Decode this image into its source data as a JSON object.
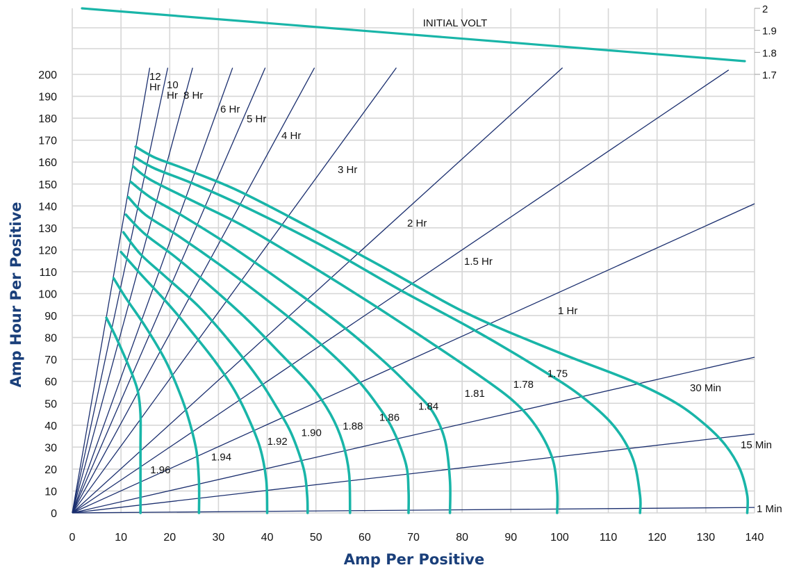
{
  "chart_data": {
    "type": "line",
    "title": "",
    "xlabel": "Amp Per Positive",
    "ylabel": "Amp Hour Per Positive",
    "xlim": [
      0,
      140
    ],
    "ylim": [
      0,
      200
    ],
    "x_ticks": [
      "0",
      "10",
      "20",
      "30",
      "40",
      "50",
      "60",
      "70",
      "80",
      "90",
      "100",
      "110",
      "120",
      "130",
      "140"
    ],
    "y_ticks": [
      "0",
      "10",
      "20",
      "30",
      "40",
      "50",
      "60",
      "70",
      "80",
      "90",
      "100",
      "110",
      "120",
      "130",
      "140",
      "150",
      "160",
      "170",
      "180",
      "190",
      "200"
    ],
    "secondary_axis": {
      "label": "INITIAL VOLT",
      "ticks": [
        "2",
        "1.9",
        "1.8",
        "1.7"
      ],
      "range": [
        1.7,
        2.0
      ],
      "series": {
        "values": [
          [
            2,
            2.0
          ],
          [
            138,
            1.76
          ]
        ]
      }
    },
    "rate_lines": [
      {
        "label": "12 Hr",
        "end": [
          15.9,
          203
        ]
      },
      {
        "label": "10 Hr",
        "end": [
          19.6,
          203
        ]
      },
      {
        "label": "8 Hr",
        "end": [
          24.7,
          203
        ]
      },
      {
        "label": "6 Hr",
        "end": [
          32.9,
          203
        ]
      },
      {
        "label": "5 Hr",
        "end": [
          39.6,
          203
        ]
      },
      {
        "label": "4 Hr",
        "end": [
          49.7,
          203
        ]
      },
      {
        "label": "3 Hr",
        "end": [
          66.5,
          203
        ]
      },
      {
        "label": "2 Hr",
        "end": [
          100.6,
          203
        ]
      },
      {
        "label": "1.5 Hr",
        "end": [
          134.7,
          202
        ]
      },
      {
        "label": "1 Hr",
        "end": [
          140,
          141
        ]
      },
      {
        "label": "30 Min",
        "end": [
          140,
          71
        ]
      },
      {
        "label": "15 Min",
        "end": [
          140,
          36
        ]
      },
      {
        "label": "1 Min",
        "end": [
          140,
          2.5
        ]
      }
    ],
    "series": [
      {
        "name": "1.96",
        "values": [
          [
            7,
            89
          ],
          [
            9,
            80
          ],
          [
            11,
            70
          ],
          [
            12.5,
            62
          ],
          [
            13.5,
            55
          ],
          [
            14,
            45
          ],
          [
            14,
            30
          ],
          [
            14,
            15
          ],
          [
            14,
            0
          ]
        ]
      },
      {
        "name": "1.94",
        "values": [
          [
            8.5,
            107
          ],
          [
            11,
            98
          ],
          [
            15,
            85
          ],
          [
            19,
            70
          ],
          [
            22,
            55
          ],
          [
            24,
            42
          ],
          [
            25.5,
            28
          ],
          [
            26,
            14
          ],
          [
            26,
            0
          ]
        ]
      },
      {
        "name": "1.92",
        "values": [
          [
            10,
            119
          ],
          [
            14,
            109
          ],
          [
            19,
            97
          ],
          [
            24,
            84
          ],
          [
            29,
            70
          ],
          [
            33,
            57
          ],
          [
            36,
            44
          ],
          [
            38.5,
            30
          ],
          [
            39.8,
            15
          ],
          [
            40,
            0
          ]
        ]
      },
      {
        "name": "1.90",
        "values": [
          [
            10.5,
            128
          ],
          [
            14,
            118
          ],
          [
            19,
            108
          ],
          [
            26,
            94
          ],
          [
            32,
            79
          ],
          [
            38,
            62
          ],
          [
            42,
            48
          ],
          [
            45,
            36
          ],
          [
            47.5,
            20
          ],
          [
            48.2,
            8
          ],
          [
            48.3,
            0
          ]
        ]
      },
      {
        "name": "1.88",
        "values": [
          [
            11,
            136
          ],
          [
            15,
            127
          ],
          [
            21,
            117
          ],
          [
            28,
            104
          ],
          [
            36,
            88
          ],
          [
            43,
            72
          ],
          [
            49,
            58
          ],
          [
            53,
            45
          ],
          [
            55.5,
            32
          ],
          [
            56.8,
            18
          ],
          [
            57,
            0
          ]
        ]
      },
      {
        "name": "1.86",
        "values": [
          [
            11.5,
            144
          ],
          [
            15,
            136
          ],
          [
            22,
            126
          ],
          [
            31,
            112
          ],
          [
            40,
            97
          ],
          [
            50,
            79
          ],
          [
            58,
            62
          ],
          [
            63,
            48
          ],
          [
            66,
            37
          ],
          [
            68.5,
            22
          ],
          [
            69,
            10
          ],
          [
            69,
            0
          ]
        ]
      },
      {
        "name": "1.84",
        "values": [
          [
            12,
            151
          ],
          [
            16,
            144
          ],
          [
            23,
            135
          ],
          [
            33,
            121
          ],
          [
            44,
            104
          ],
          [
            55,
            86
          ],
          [
            64,
            69
          ],
          [
            70,
            56
          ],
          [
            74,
            46
          ],
          [
            76.5,
            33
          ],
          [
            77.5,
            15
          ],
          [
            77.5,
            0
          ]
        ]
      },
      {
        "name": "1.81",
        "values": [
          [
            12.5,
            158
          ],
          [
            16,
            152
          ],
          [
            25,
            142
          ],
          [
            35,
            131
          ],
          [
            48,
            114
          ],
          [
            61,
            96
          ],
          [
            72,
            80
          ],
          [
            82,
            65
          ],
          [
            90,
            52
          ],
          [
            95,
            40
          ],
          [
            98.5,
            25
          ],
          [
            99.5,
            10
          ],
          [
            99.5,
            0
          ]
        ]
      },
      {
        "name": "1.78",
        "values": [
          [
            13,
            162
          ],
          [
            17,
            157
          ],
          [
            25,
            150
          ],
          [
            36,
            139
          ],
          [
            52,
            121
          ],
          [
            67,
            102
          ],
          [
            82,
            84
          ],
          [
            95,
            67
          ],
          [
            104,
            54
          ],
          [
            111,
            40
          ],
          [
            115,
            25
          ],
          [
            116.5,
            8
          ],
          [
            116.5,
            0
          ]
        ]
      },
      {
        "name": "1.75",
        "values": [
          [
            13,
            167
          ],
          [
            17,
            162
          ],
          [
            23,
            157
          ],
          [
            34,
            147
          ],
          [
            48,
            131
          ],
          [
            63,
            113
          ],
          [
            81,
            91
          ],
          [
            100,
            73
          ],
          [
            115,
            60
          ],
          [
            124,
            50
          ],
          [
            130,
            40
          ],
          [
            134,
            31
          ],
          [
            137,
            20
          ],
          [
            138.5,
            8
          ],
          [
            138.5,
            0
          ]
        ]
      }
    ],
    "series_label_positions": [
      [
        16,
        18
      ],
      [
        28.5,
        24
      ],
      [
        40,
        31
      ],
      [
        47,
        35
      ],
      [
        55.5,
        38
      ],
      [
        63,
        42
      ],
      [
        71,
        47
      ],
      [
        80.5,
        53
      ],
      [
        90.5,
        57
      ],
      [
        97.5,
        62
      ]
    ],
    "grid": true,
    "legend": "none"
  },
  "colors": {
    "teal": "#19b5a8",
    "navy": "#1a2e6e",
    "axis_title": "#1a3f7a",
    "grid": "#d6d6d6"
  }
}
